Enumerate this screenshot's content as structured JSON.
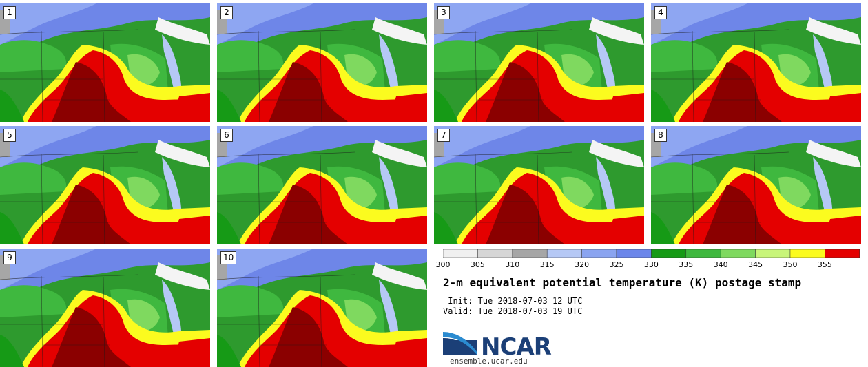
{
  "panels": [
    "1",
    "2",
    "3",
    "4",
    "5",
    "6",
    "7",
    "8",
    "9",
    "10"
  ],
  "colorbar": {
    "ticks": [
      "300",
      "305",
      "310",
      "315",
      "320",
      "325",
      "330",
      "335",
      "340",
      "345",
      "350",
      "355"
    ],
    "colors": [
      "#f0f0f0",
      "#d6d6d6",
      "#a6a6a6",
      "#b5c8f5",
      "#8aa4f0",
      "#6b86ea",
      "#169a16",
      "#3fb83f",
      "#7fd95f",
      "#c8f57a",
      "#fbfb1f",
      "#e40000",
      "#8b0000"
    ]
  },
  "title": "2-m equivalent potential temperature (K) postage stamp",
  "init": " Init: Tue 2018-07-03 12 UTC",
  "valid": "Valid: Tue 2018-07-03 19 UTC",
  "logo": {
    "name": "NCAR",
    "url": "ensemble.ucar.edu",
    "color": "#1b3f77",
    "accent": "#2b8bd0"
  }
}
